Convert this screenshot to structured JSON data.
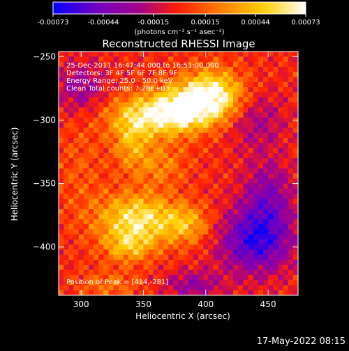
{
  "chart_data": {
    "type": "heatmap",
    "title": "Reconstructed RHESSI Image",
    "xlabel": "Heliocentric X (arcsec)",
    "ylabel": "Heliocentric Y (arcsec)",
    "xlim": [
      282,
      474
    ],
    "ylim": [
      -438,
      -246
    ],
    "x_ticks": [
      "300",
      "350",
      "400",
      "450"
    ],
    "x_tick_values": [
      300,
      350,
      400,
      450
    ],
    "y_ticks": [
      "-250",
      "-300",
      "-350",
      "-400"
    ],
    "y_tick_values": [
      -250,
      -300,
      -350,
      -400
    ],
    "colorbar": {
      "ticks": [
        "-0.00073",
        "-0.00044",
        "-0.00015",
        "0.00015",
        "0.00044",
        "0.00073"
      ],
      "range": [
        -0.00073,
        0.00073
      ],
      "units_label": "(photons cm⁻² s⁻¹ asec⁻²)",
      "colors": [
        "#0000ff",
        "#7000c0",
        "#a00090",
        "#ff2000",
        "#ff8000",
        "#ffd000",
        "#ffffff"
      ]
    },
    "annotations": [
      "25-Dec-2011 16:47:44.000 to 16:51:00.000",
      "Detectors: 3F 4F 5F 6F 7F 8F 9F",
      "Energy Range: 25.0 - 50.0 keV",
      "Clean      Total counts: 7.28E+03"
    ],
    "peak_label": "Position of Peak = [414,-281]",
    "peak": {
      "x": 414,
      "y": -281
    },
    "sources": [
      {
        "x": 405,
        "y": -281,
        "sx": 18,
        "sy": 14,
        "amp": 0.00073
      },
      {
        "x": 380,
        "y": -292,
        "sx": 18,
        "sy": 12,
        "amp": 0.00055
      },
      {
        "x": 352,
        "y": -297,
        "sx": 22,
        "sy": 12,
        "amp": 0.0005
      },
      {
        "x": 340,
        "y": -318,
        "sx": 10,
        "sy": 14,
        "amp": 0.0003
      },
      {
        "x": 362,
        "y": -335,
        "sx": 16,
        "sy": 12,
        "amp": 0.00025
      },
      {
        "x": 345,
        "y": -378,
        "sx": 22,
        "sy": 14,
        "amp": 0.0006
      },
      {
        "x": 385,
        "y": -382,
        "sx": 14,
        "sy": 11,
        "amp": 0.00035
      },
      {
        "x": 338,
        "y": -400,
        "sx": 14,
        "sy": 9,
        "amp": 0.00035
      },
      {
        "x": 300,
        "y": -340,
        "sx": 14,
        "sy": 30,
        "amp": 0.00012
      },
      {
        "x": 322,
        "y": -430,
        "sx": 18,
        "sy": 8,
        "amp": 0.0002
      },
      {
        "x": 440,
        "y": -395,
        "sx": 20,
        "sy": 18,
        "amp": -0.0006
      },
      {
        "x": 450,
        "y": -360,
        "sx": 14,
        "sy": 20,
        "amp": -0.00035
      },
      {
        "x": 300,
        "y": -275,
        "sx": 14,
        "sy": 14,
        "amp": -0.0003
      },
      {
        "x": 440,
        "y": -300,
        "sx": 16,
        "sy": 16,
        "amp": -0.00025
      },
      {
        "x": 390,
        "y": -430,
        "sx": 16,
        "sy": 8,
        "amp": -0.0003
      }
    ]
  },
  "timestamp": "17-May-2022 08:15"
}
